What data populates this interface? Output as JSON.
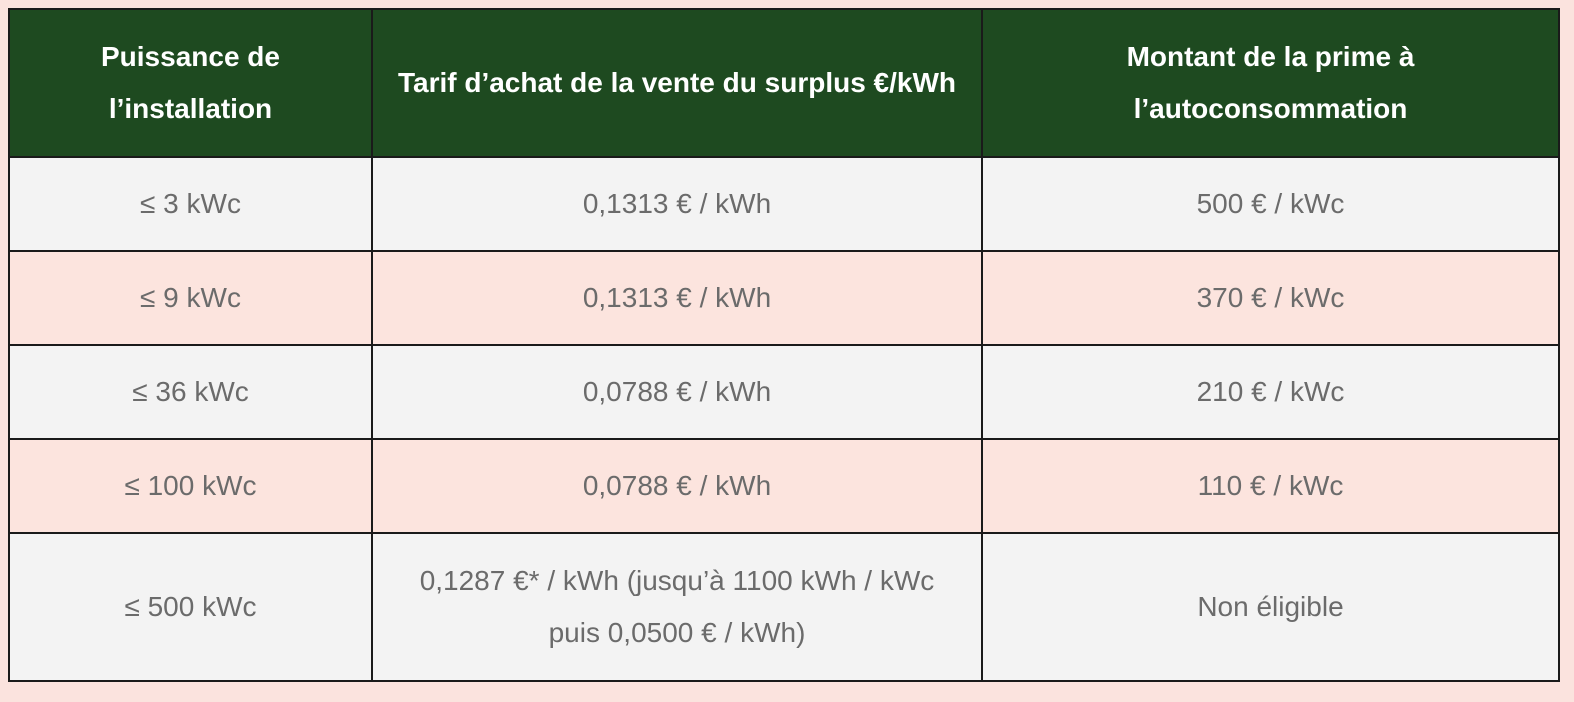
{
  "table": {
    "header": [
      "Puissance de l’installation",
      "Tarif d’achat de la vente du surplus €/kWh",
      "Montant de la prime à l’autoconsommation"
    ],
    "rows": [
      [
        "≤ 3 kWc",
        "0,1313 € / kWh",
        "500 € / kWc"
      ],
      [
        "≤ 9 kWc",
        "0,1313 € / kWh",
        "370 € / kWc"
      ],
      [
        "≤ 36 kWc",
        "0,0788 € / kWh",
        "210 € / kWc"
      ],
      [
        "≤ 100 kWc",
        "0,0788 € / kWh",
        "110 € / kWc"
      ],
      [
        "≤ 500 kWc",
        "0,1287 €* / kWh (jusqu’à 1100 kWh / kWc puis 0,0500 € / kWh)",
        "Non éligible"
      ]
    ]
  }
}
